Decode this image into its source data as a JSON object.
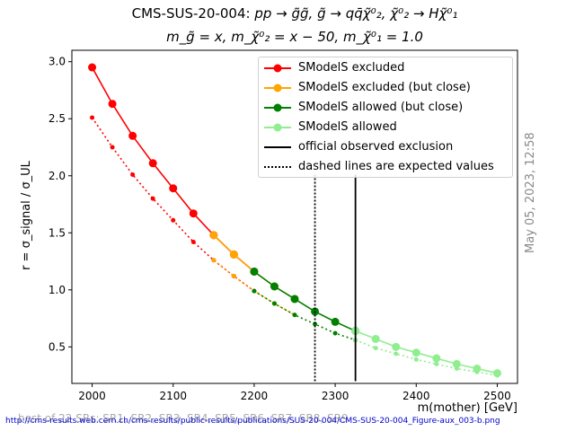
{
  "chart_data": {
    "type": "line",
    "title_line1": "CMS-SUS-20-004: ",
    "title_process": "pp → g̃g̃, g̃ → qq̄χ̃⁰₂, χ̃⁰₂ → Hχ̃⁰₁",
    "title_line2": "m_g̃ = x, m_χ̃⁰₂ = x − 50, m_χ̃⁰₁ = 1.0",
    "xlabel": "m(mother) [GeV]",
    "ylabel": "r = σ_signal / σ_UL",
    "xlim": [
      1975,
      2525
    ],
    "ylim": [
      0.18,
      3.1
    ],
    "xticks": [
      2000,
      2100,
      2200,
      2300,
      2400,
      2500
    ],
    "yticks": [
      0.5,
      1.0,
      1.5,
      2.0,
      2.5,
      3.0
    ],
    "legend_position": "upper-right",
    "series": [
      {
        "name": "SModelS excluded",
        "color": "#ff0000",
        "x": [
          2000,
          2025,
          2050,
          2075,
          2100,
          2125,
          2150,
          2175,
          2200
        ],
        "y": [
          2.95,
          2.63,
          2.35,
          2.11,
          1.89,
          1.67,
          1.48,
          1.31,
          1.16
        ],
        "y_expected": [
          2.51,
          2.25,
          2.01,
          1.8,
          1.61,
          1.42,
          1.26,
          1.12,
          0.99
        ]
      },
      {
        "name": "SModelS excluded (but close)",
        "color": "#ffa500",
        "x": [
          2150,
          2175,
          2200,
          2225,
          2250
        ],
        "y": [
          1.48,
          1.31,
          1.16,
          1.03,
          0.92
        ],
        "y_expected": [
          1.26,
          1.12,
          0.99,
          0.88,
          0.78
        ]
      },
      {
        "name": "SModelS allowed (but close)",
        "color": "#008000",
        "x": [
          2200,
          2225,
          2250,
          2275,
          2300,
          2325
        ],
        "y": [
          1.16,
          1.03,
          0.92,
          0.81,
          0.72,
          0.64
        ],
        "y_expected": [
          0.99,
          0.88,
          0.78,
          0.7,
          0.62,
          0.56
        ]
      },
      {
        "name": "SModelS allowed",
        "color": "#90ee90",
        "x": [
          2325,
          2350,
          2375,
          2400,
          2425,
          2450,
          2475,
          2500
        ],
        "y": [
          0.64,
          0.57,
          0.5,
          0.45,
          0.4,
          0.35,
          0.31,
          0.27
        ],
        "y_expected": [
          0.56,
          0.49,
          0.44,
          0.39,
          0.35,
          0.31,
          0.28,
          0.25
        ]
      }
    ],
    "exclusion_lines": {
      "observed": {
        "name": "official observed exclusion",
        "x": 2325,
        "y_range": [
          0.2,
          2.01
        ]
      },
      "expected": {
        "name": "dashed lines are expected values",
        "x": 2275,
        "y_range": [
          0.2,
          2.01
        ]
      }
    },
    "timestamp": "May 05, 2023, 12:58",
    "footer_text": "best of 22 SRs: SR1, SR2, SR3, SR4, SR5, SR6, SR7, SR8, SR9",
    "footer_url": "http://cms-results.web.cern.ch/cms-results/public-results/publications/SUS-20-004/CMS-SUS-20-004_Figure-aux_003-b.png"
  }
}
